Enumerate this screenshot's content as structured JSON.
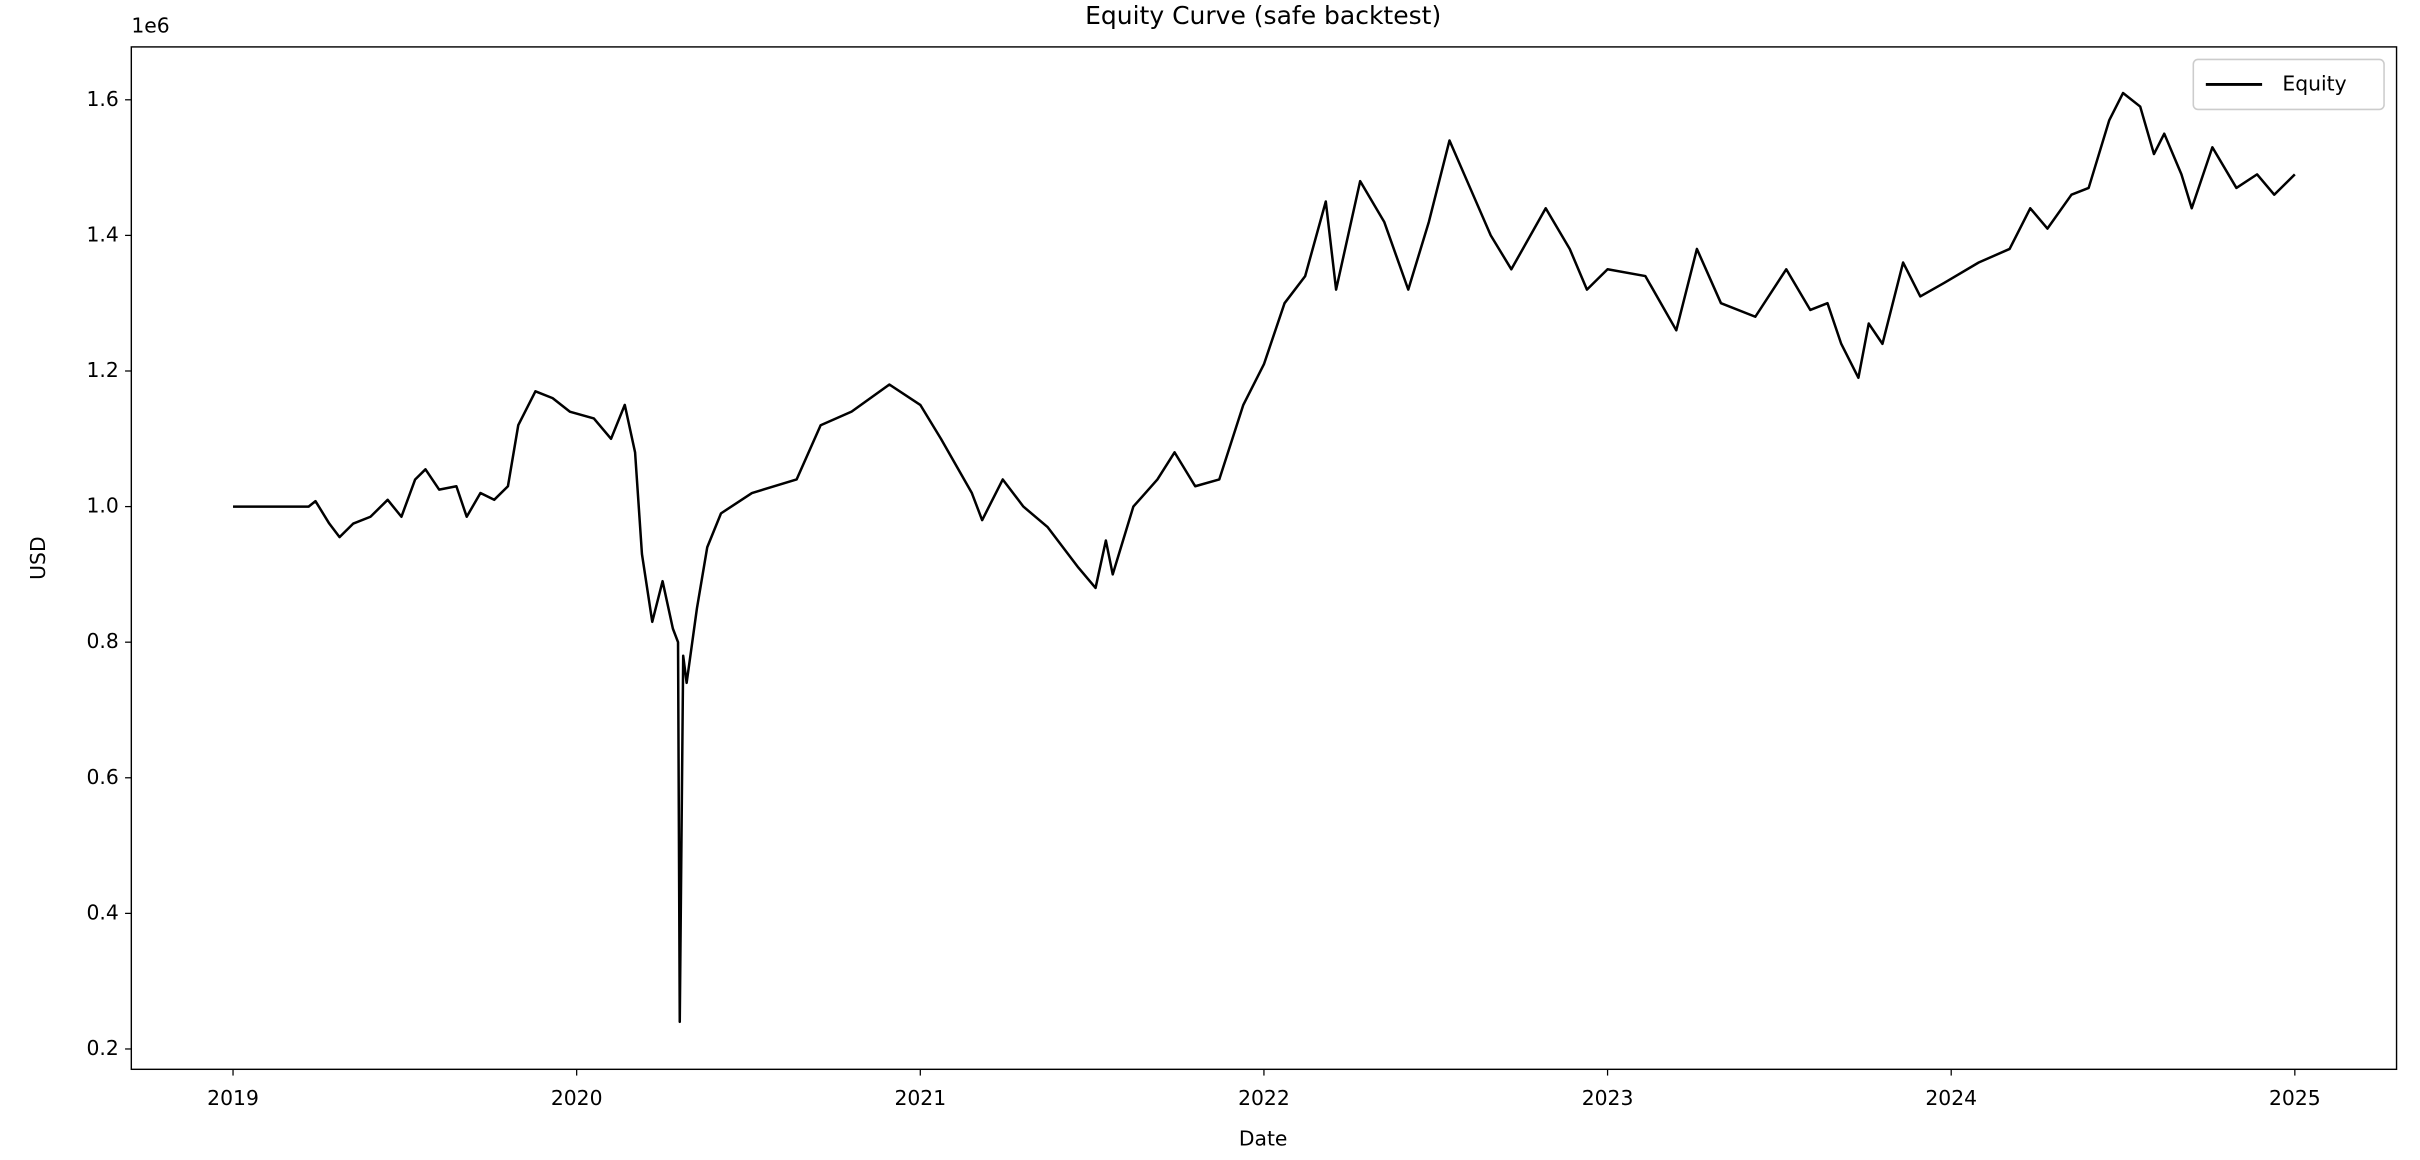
{
  "chart_data": {
    "type": "line",
    "title": "Equity Curve (safe backtest)",
    "x_label": "Date",
    "y_label": "USD",
    "offset_label": "1e6",
    "legend": "upper right",
    "grid": false,
    "xlim": [
      2018.704,
      2025.296
    ],
    "xticks": [
      2019,
      2020,
      2021,
      2022,
      2023,
      2024,
      2025
    ],
    "ylim": [
      0.17,
      1.678
    ],
    "yticks": [
      0.2,
      0.4,
      0.6,
      0.8,
      {
        "value": 1,
        "label": "1.0"
      },
      1.2,
      1.4,
      1.6
    ],
    "x": [
      2019.0,
      2019.22,
      2019.24,
      2019.28,
      2019.31,
      2019.35,
      2019.4,
      2019.45,
      2019.49,
      2019.53,
      2019.56,
      2019.6,
      2019.65,
      2019.68,
      2019.72,
      2019.76,
      2019.8,
      2019.83,
      2019.88,
      2019.93,
      2019.98,
      2020.05,
      2020.1,
      2020.14,
      2020.17,
      2020.19,
      2020.22,
      2020.25,
      2020.28,
      2020.295,
      2020.3,
      2020.31,
      2020.32,
      2020.35,
      2020.38,
      2020.42,
      2020.51,
      2020.64,
      2020.71,
      2020.8,
      2020.91,
      2021.0,
      2021.06,
      2021.15,
      2021.18,
      2021.24,
      2021.3,
      2021.37,
      2021.46,
      2021.51,
      2021.54,
      2021.56,
      2021.62,
      2021.69,
      2021.74,
      2021.8,
      2021.87,
      2021.94,
      2022.0,
      2022.06,
      2022.12,
      2022.18,
      2022.21,
      2022.28,
      2022.35,
      2022.42,
      2022.48,
      2022.54,
      2022.6,
      2022.66,
      2022.72,
      2022.82,
      2022.89,
      2022.94,
      2023.0,
      2023.11,
      2023.2,
      2023.26,
      2023.33,
      2023.43,
      2023.52,
      2023.59,
      2023.64,
      2023.68,
      2023.73,
      2023.76,
      2023.8,
      2023.86,
      2023.91,
      2023.98,
      2024.08,
      2024.17,
      2024.23,
      2024.28,
      2024.35,
      2024.4,
      2024.46,
      2024.5,
      2024.55,
      2024.59,
      2024.62,
      2024.67,
      2024.7,
      2024.76,
      2024.83,
      2024.89,
      2024.94,
      2025.0
    ],
    "series": [
      {
        "name": "Equity",
        "color": "#000000",
        "values": [
          1.0,
          1.0,
          1.008,
          0.975,
          0.955,
          0.975,
          0.985,
          1.01,
          0.985,
          1.04,
          1.055,
          1.025,
          1.03,
          0.985,
          1.02,
          1.01,
          1.03,
          1.12,
          1.17,
          1.16,
          1.14,
          1.13,
          1.1,
          1.15,
          1.08,
          0.93,
          0.83,
          0.89,
          0.82,
          0.8,
          0.24,
          0.78,
          0.74,
          0.85,
          0.94,
          0.99,
          1.02,
          1.04,
          1.12,
          1.14,
          1.18,
          1.15,
          1.1,
          1.02,
          0.98,
          1.04,
          1.0,
          0.97,
          0.91,
          0.88,
          0.95,
          0.9,
          1.0,
          1.04,
          1.08,
          1.03,
          1.04,
          1.15,
          1.21,
          1.3,
          1.34,
          1.45,
          1.32,
          1.48,
          1.42,
          1.32,
          1.42,
          1.54,
          1.47,
          1.4,
          1.35,
          1.44,
          1.38,
          1.32,
          1.35,
          1.34,
          1.26,
          1.38,
          1.3,
          1.28,
          1.35,
          1.29,
          1.3,
          1.24,
          1.19,
          1.27,
          1.24,
          1.36,
          1.31,
          1.33,
          1.36,
          1.38,
          1.44,
          1.41,
          1.46,
          1.47,
          1.57,
          1.61,
          1.59,
          1.52,
          1.55,
          1.49,
          1.44,
          1.53,
          1.47,
          1.49,
          1.46,
          1.49
        ]
      }
    ]
  }
}
